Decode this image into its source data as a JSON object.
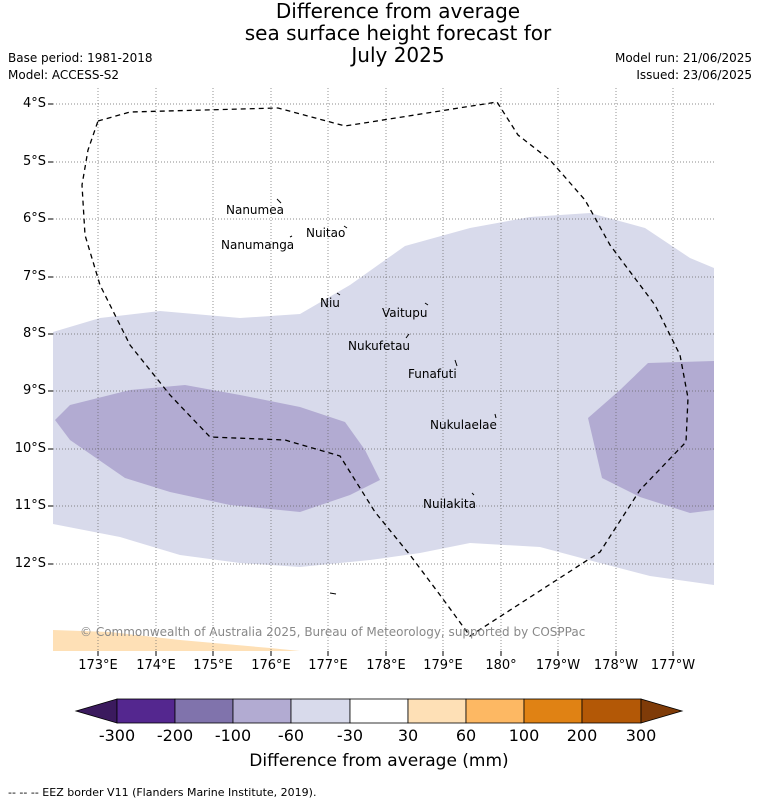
{
  "title_lines": [
    "Difference from average",
    "sea surface height forecast for",
    "July 2025"
  ],
  "meta_left": [
    "Base period: 1981-2018",
    "Model: ACCESS-S2"
  ],
  "meta_right": [
    "Model run: 21/06/2025",
    "Issued: 23/06/2025"
  ],
  "lat_labels": [
    "4°S",
    "5°S",
    "6°S",
    "7°S",
    "8°S",
    "9°S",
    "10°S",
    "11°S",
    "12°S"
  ],
  "lon_labels": [
    "173°E",
    "174°E",
    "175°E",
    "176°E",
    "177°E",
    "178°E",
    "179°E",
    "180°",
    "179°W",
    "178°W",
    "177°W"
  ],
  "islands": [
    "Nanumea",
    "Nuitao",
    "Nanumanga",
    "Niu",
    "Vaitupu",
    "Nukufetau",
    "Funafuti",
    "Nukulaelae",
    "Nuilakita"
  ],
  "copyright": "© Commonwealth of Australia 2025, Bureau of Meteorology, supported by COSPPac",
  "colorbar": {
    "labels": [
      "-300",
      "-200",
      "-100",
      "-60",
      "-30",
      "30",
      "60",
      "100",
      "200",
      "300"
    ],
    "colors": [
      "#3b1a5e",
      "#54278f",
      "#8073ac",
      "#b2abd2",
      "#d8daeb",
      "#ffffff",
      "#fee0b6",
      "#fdb863",
      "#e08214",
      "#b35806",
      "#7f3b08"
    ],
    "title": "Difference from average (mm)"
  },
  "footer": "--  --  -- EEZ border V11 (Flanders Marine Institute, 2019)."
}
